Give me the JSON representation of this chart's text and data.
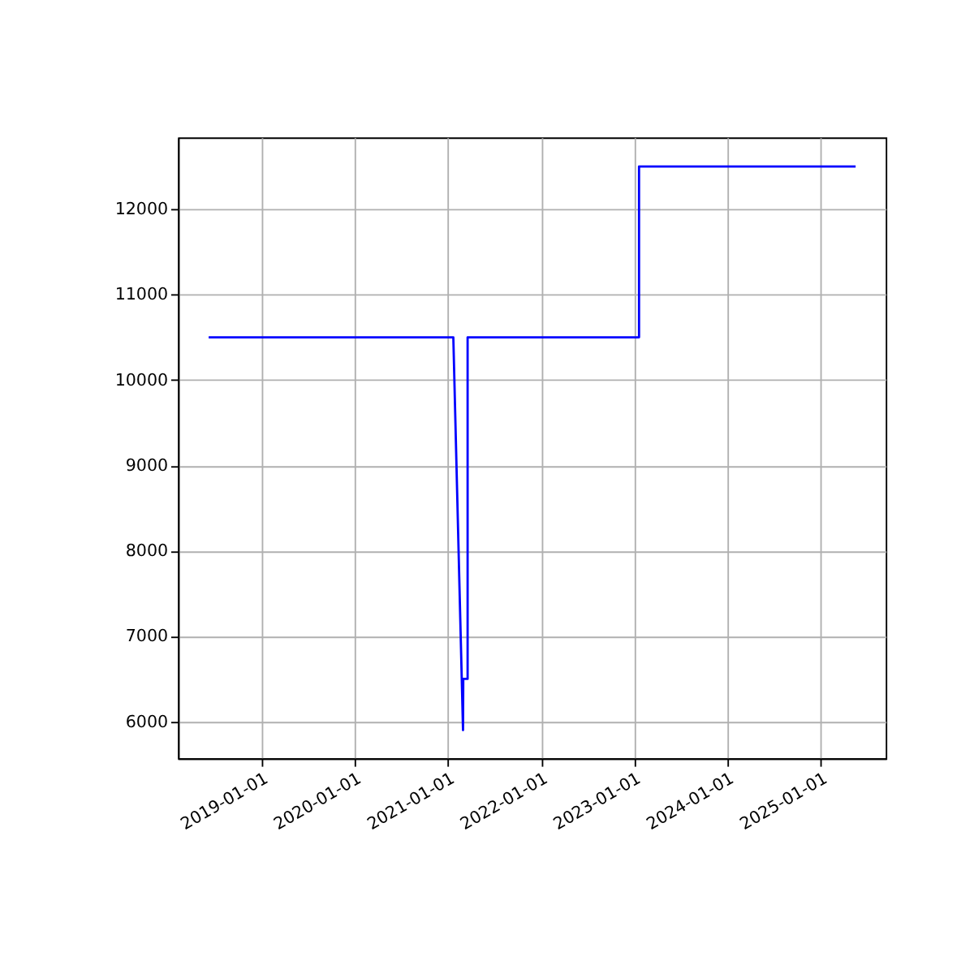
{
  "chart_data": {
    "type": "line",
    "x": [
      "2018-06-08",
      "2021-01-22",
      "2021-03-01",
      "2021-03-02",
      "2021-03-19",
      "2021-03-19",
      "2023-01-20",
      "2023-01-20",
      "2025-05-18"
    ],
    "series": [
      {
        "color": "#0000ff",
        "values": [
          10500,
          10500,
          5900,
          6500,
          6500,
          10500,
          10500,
          12500,
          12500
        ]
      }
    ],
    "xlim": [
      "2018-02-08",
      "2025-09-13"
    ],
    "ylim": [
      5570,
      12840
    ],
    "xticks": [
      "2019-01-01",
      "2020-01-01",
      "2021-01-01",
      "2022-01-01",
      "2023-01-01",
      "2024-01-01",
      "2025-01-01"
    ],
    "yticks": [
      6000,
      7000,
      8000,
      9000,
      10000,
      11000,
      12000
    ],
    "grid": true,
    "marker": "none",
    "line_style": "solid"
  }
}
